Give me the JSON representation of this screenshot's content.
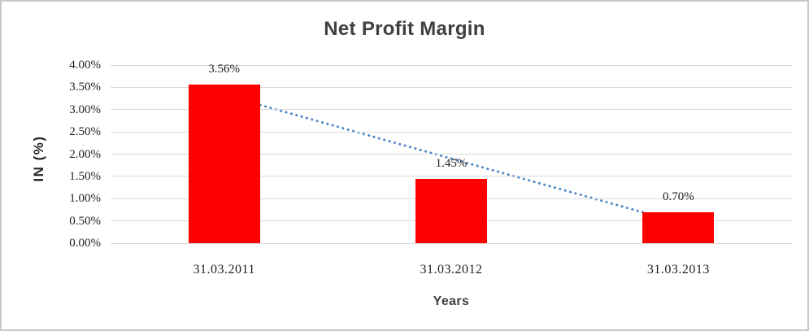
{
  "chart_data": {
    "type": "bar",
    "title": "Net Profit Margin",
    "xlabel": "Years",
    "ylabel": "IN (%)",
    "categories": [
      "31.03.2011",
      "31.03.2012",
      "31.03.2013"
    ],
    "values": [
      3.56,
      1.45,
      0.7
    ],
    "data_labels": [
      "3.56%",
      "1.45%",
      "0.70%"
    ],
    "ylim": [
      0,
      4
    ],
    "ytick_step": 0.5,
    "ytick_labels": [
      "0.00%",
      "0.50%",
      "1.00%",
      "1.50%",
      "2.00%",
      "2.50%",
      "3.00%",
      "3.50%",
      "4.00%"
    ],
    "grid": true,
    "legend": "none",
    "bar_color": "#ff0000",
    "gridline_color": "#d9d9d9",
    "trendline": {
      "style": "dotted",
      "color": "#4a86c8",
      "start_value": 3.33,
      "end_value": 0.47
    }
  }
}
